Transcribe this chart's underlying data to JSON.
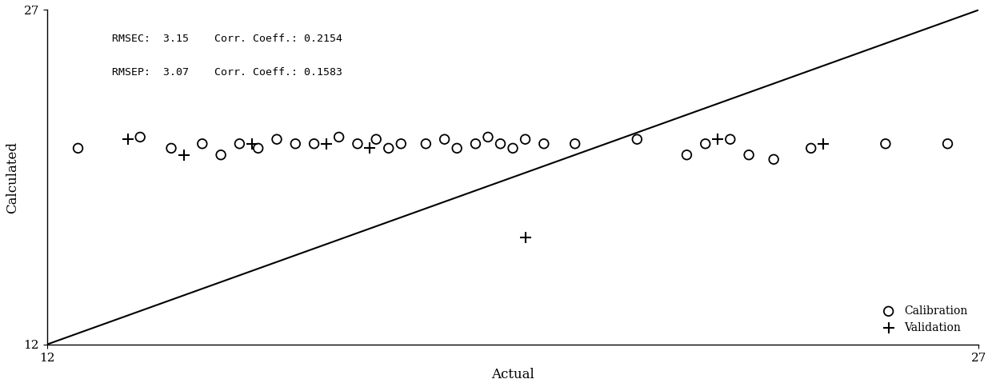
{
  "xlim": [
    12,
    27
  ],
  "ylim": [
    12,
    27
  ],
  "xlabel": "Actual",
  "ylabel": "Calculated",
  "annotation_line1": "RMSEC:  3.15    Corr. Coeff.: 0.2154",
  "annotation_line2": "RMSEP:  3.07    Corr. Coeff.: 0.1583",
  "xticks": [
    12,
    27
  ],
  "yticks": [
    12,
    27
  ],
  "cal_x": [
    12.5,
    13.5,
    14.0,
    14.5,
    14.8,
    15.1,
    15.4,
    15.7,
    16.0,
    16.3,
    16.7,
    17.0,
    17.3,
    17.5,
    17.7,
    18.1,
    18.4,
    18.6,
    18.9,
    19.1,
    19.3,
    19.5,
    19.7,
    20.0,
    20.5,
    21.0,
    21.5,
    22.3,
    22.6,
    23.0,
    23.3,
    23.7,
    24.3,
    25.5,
    26.5
  ],
  "cal_y": [
    20.8,
    21.3,
    20.8,
    21.0,
    20.5,
    21.0,
    20.8,
    21.2,
    21.0,
    21.0,
    21.3,
    21.0,
    21.2,
    20.8,
    21.0,
    21.0,
    21.2,
    20.8,
    21.0,
    21.3,
    21.0,
    20.8,
    21.2,
    21.0,
    21.0,
    11.2,
    21.2,
    20.5,
    21.0,
    21.2,
    20.5,
    20.3,
    20.8,
    21.0,
    21.0
  ],
  "val_x": [
    13.3,
    14.2,
    15.3,
    16.5,
    17.2,
    19.7,
    22.8,
    24.5
  ],
  "val_y": [
    21.2,
    20.5,
    21.0,
    21.0,
    20.8,
    16.8,
    21.2,
    21.0
  ],
  "bg_color": "#ffffff"
}
